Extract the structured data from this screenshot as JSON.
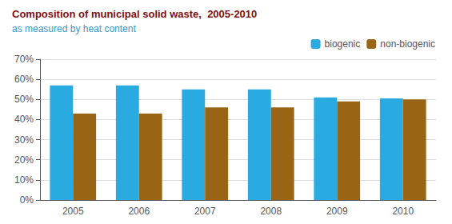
{
  "chart_data": {
    "type": "bar",
    "title": "Composition of municipal solid waste,  2005-2010",
    "subtitle": "as measured by heat content",
    "categories": [
      "2005",
      "2006",
      "2007",
      "2008",
      "2009",
      "2010"
    ],
    "series": [
      {
        "name": "biogenic",
        "color": "#29ABE2",
        "values": [
          0.57,
          0.57,
          0.55,
          0.55,
          0.51,
          0.505
        ]
      },
      {
        "name": "non-biogenic",
        "color": "#996515",
        "values": [
          0.43,
          0.43,
          0.46,
          0.46,
          0.49,
          0.5
        ]
      }
    ],
    "ylim": [
      0,
      0.7
    ],
    "yticks": [
      {
        "value": 0.0,
        "label": "0%"
      },
      {
        "value": 0.1,
        "label": "10%"
      },
      {
        "value": 0.2,
        "label": "20%"
      },
      {
        "value": 0.3,
        "label": "30%"
      },
      {
        "value": 0.4,
        "label": "40%"
      },
      {
        "value": 0.5,
        "label": "50%"
      },
      {
        "value": 0.6,
        "label": "60%"
      },
      {
        "value": 0.7,
        "label": "70%"
      }
    ],
    "grid": true,
    "legend": "upper right"
  }
}
